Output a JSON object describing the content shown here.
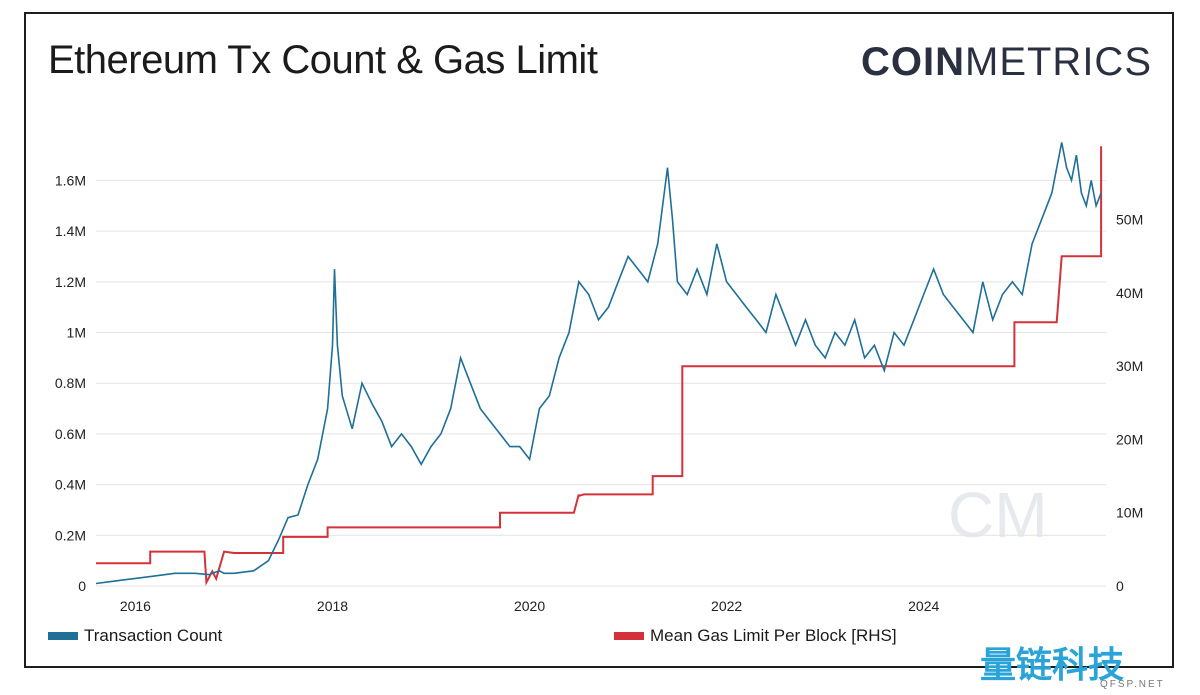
{
  "title": "Ethereum Tx Count & Gas Limit",
  "logo": {
    "bold": "COIN",
    "light": "METRICS"
  },
  "watermark_mark": "CM",
  "watermark": {
    "text": "量链科技",
    "sub": "QFSP.NET"
  },
  "colors": {
    "tx": "#1f6f96",
    "gas": "#d4323a",
    "grid": "#e4e4e4",
    "text": "#222222"
  },
  "chart_data": {
    "type": "line",
    "title": "Ethereum Tx Count & Gas Limit",
    "x_ticks": [
      "2016",
      "2018",
      "2020",
      "2022",
      "2024"
    ],
    "x_tick_values": [
      2016,
      2018,
      2020,
      2022,
      2024
    ],
    "xlim": [
      2015.6,
      2025.85
    ],
    "y_left": {
      "ticks": [
        "0",
        "0.2M",
        "0.4M",
        "0.6M",
        "0.8M",
        "1M",
        "1.2M",
        "1.4M",
        "1.6M"
      ],
      "tick_values": [
        0,
        0.2,
        0.4,
        0.6,
        0.8,
        1.0,
        1.2,
        1.4,
        1.6
      ],
      "ylim": [
        0,
        1.6
      ],
      "unit": "M"
    },
    "y_right": {
      "ticks": [
        "0",
        "10M",
        "20M",
        "30M",
        "40M",
        "50M"
      ],
      "tick_values": [
        0,
        10,
        20,
        30,
        40,
        50
      ],
      "ylim": [
        0,
        50
      ],
      "unit": "M"
    },
    "legend_position": "bottom",
    "series": [
      {
        "name": "Transaction Count",
        "axis": "left",
        "x": [
          2015.6,
          2015.8,
          2016.0,
          2016.2,
          2016.4,
          2016.6,
          2016.75,
          2016.85,
          2016.9,
          2017.0,
          2017.2,
          2017.35,
          2017.45,
          2017.55,
          2017.65,
          2017.75,
          2017.85,
          2017.95,
          2018.0,
          2018.02,
          2018.05,
          2018.1,
          2018.2,
          2018.3,
          2018.4,
          2018.5,
          2018.6,
          2018.7,
          2018.8,
          2018.9,
          2019.0,
          2019.1,
          2019.2,
          2019.3,
          2019.4,
          2019.5,
          2019.6,
          2019.7,
          2019.8,
          2019.9,
          2020.0,
          2020.1,
          2020.2,
          2020.3,
          2020.4,
          2020.5,
          2020.6,
          2020.7,
          2020.8,
          2020.9,
          2021.0,
          2021.1,
          2021.2,
          2021.3,
          2021.35,
          2021.4,
          2021.45,
          2021.5,
          2021.6,
          2021.7,
          2021.8,
          2021.9,
          2022.0,
          2022.1,
          2022.2,
          2022.3,
          2022.4,
          2022.5,
          2022.6,
          2022.7,
          2022.8,
          2022.9,
          2023.0,
          2023.1,
          2023.2,
          2023.3,
          2023.4,
          2023.5,
          2023.6,
          2023.7,
          2023.8,
          2023.9,
          2024.0,
          2024.1,
          2024.2,
          2024.3,
          2024.4,
          2024.5,
          2024.6,
          2024.7,
          2024.8,
          2024.9,
          2025.0,
          2025.1,
          2025.2,
          2025.3,
          2025.4,
          2025.45,
          2025.5,
          2025.55,
          2025.6,
          2025.65,
          2025.7,
          2025.75,
          2025.8
        ],
        "y": [
          0.01,
          0.02,
          0.03,
          0.04,
          0.05,
          0.05,
          0.045,
          0.06,
          0.05,
          0.05,
          0.06,
          0.1,
          0.18,
          0.27,
          0.28,
          0.4,
          0.5,
          0.7,
          0.95,
          1.25,
          0.95,
          0.75,
          0.62,
          0.8,
          0.72,
          0.65,
          0.55,
          0.6,
          0.55,
          0.48,
          0.55,
          0.6,
          0.7,
          0.9,
          0.8,
          0.7,
          0.65,
          0.6,
          0.55,
          0.55,
          0.5,
          0.7,
          0.75,
          0.9,
          1.0,
          1.2,
          1.15,
          1.05,
          1.1,
          1.2,
          1.3,
          1.25,
          1.2,
          1.35,
          1.5,
          1.65,
          1.45,
          1.2,
          1.15,
          1.25,
          1.15,
          1.35,
          1.2,
          1.15,
          1.1,
          1.05,
          1.0,
          1.15,
          1.05,
          0.95,
          1.05,
          0.95,
          0.9,
          1.0,
          0.95,
          1.05,
          0.9,
          0.95,
          0.85,
          1.0,
          0.95,
          1.05,
          1.15,
          1.25,
          1.15,
          1.1,
          1.05,
          1.0,
          1.2,
          1.05,
          1.15,
          1.2,
          1.15,
          1.35,
          1.45,
          1.55,
          1.75,
          1.65,
          1.6,
          1.7,
          1.55,
          1.5,
          1.6,
          1.5,
          1.55
        ]
      },
      {
        "name": "Mean Gas Limit Per Block [RHS]",
        "axis": "right",
        "x": [
          2015.6,
          2016.15,
          2016.15,
          2016.7,
          2016.72,
          2016.78,
          2016.82,
          2016.9,
          2017.0,
          2017.5,
          2017.5,
          2017.95,
          2017.95,
          2019.7,
          2019.7,
          2020.45,
          2020.5,
          2020.5,
          2020.55,
          2020.55,
          2021.25,
          2021.25,
          2021.55,
          2021.55,
          2024.9,
          2024.92,
          2024.92,
          2025.35,
          2025.4,
          2025.4,
          2025.8,
          2025.8
        ],
        "y": [
          3.1,
          3.1,
          4.7,
          4.7,
          0.5,
          2.0,
          1.0,
          4.7,
          4.5,
          4.5,
          6.7,
          6.7,
          8.0,
          8.0,
          10.0,
          10.0,
          12.5,
          12.3,
          12.5,
          12.5,
          12.5,
          15.0,
          15.0,
          30.0,
          30.0,
          30.0,
          36.0,
          36.0,
          45.0,
          45.0,
          45.0,
          60.0
        ]
      }
    ]
  }
}
